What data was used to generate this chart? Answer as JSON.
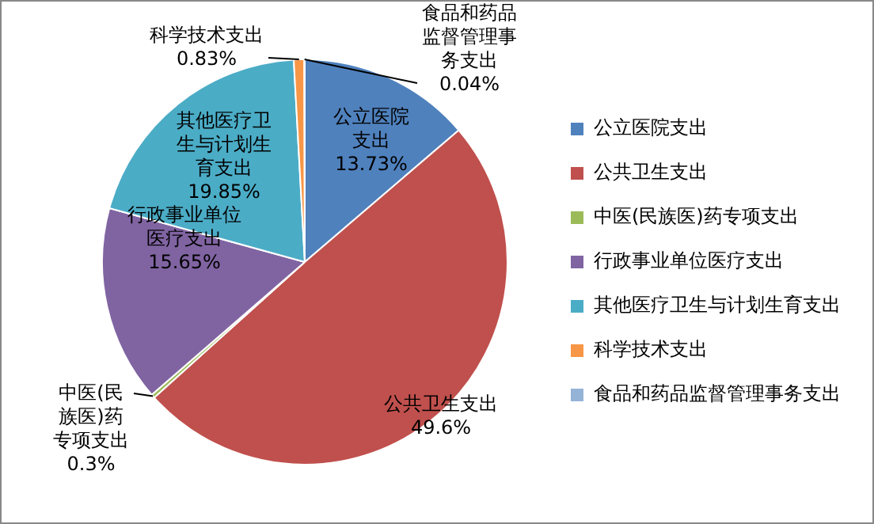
{
  "chart_data": {
    "type": "pie",
    "categories": [
      "公立医院支出",
      "公共卫生支出",
      "中医(民族医)药专项支出",
      "行政事业单位医疗支出",
      "其他医疗卫生与计划生育支出",
      "科学技术支出",
      "食品和药品监督管理事务支出"
    ],
    "values": [
      13.73,
      49.6,
      0.3,
      15.65,
      19.85,
      0.83,
      0.04
    ],
    "value_labels": [
      "13.73%",
      "49.6%",
      "0.3%",
      "15.65%",
      "19.85%",
      "0.83%",
      "0.04%"
    ],
    "colors": [
      "#4f81bd",
      "#c0504d",
      "#9bbb59",
      "#8064a2",
      "#4bacc6",
      "#f79646",
      "#95b3d7"
    ],
    "legend": "right"
  }
}
